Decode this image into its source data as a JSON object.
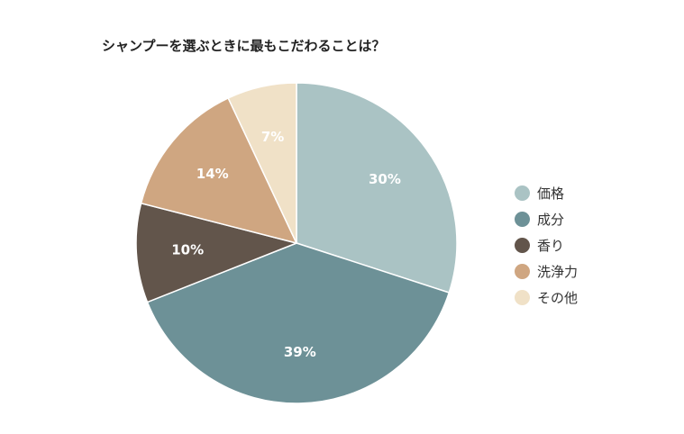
{
  "chart_data": {
    "type": "pie",
    "title": "シャンプーを選ぶときに最もこだわることは？",
    "categories": [
      "価格",
      "成分",
      "香り",
      "洗浄力",
      "その他"
    ],
    "values": [
      30,
      39,
      10,
      14,
      7
    ],
    "value_labels": [
      "30%",
      "39%",
      "10%",
      "14%",
      "7%"
    ],
    "colors": [
      "#aac3c4",
      "#6d9197",
      "#62554b",
      "#cfa681",
      "#f0e1c7"
    ],
    "start": "12 o'clock",
    "direction": "clockwise",
    "legend_position": "right"
  }
}
